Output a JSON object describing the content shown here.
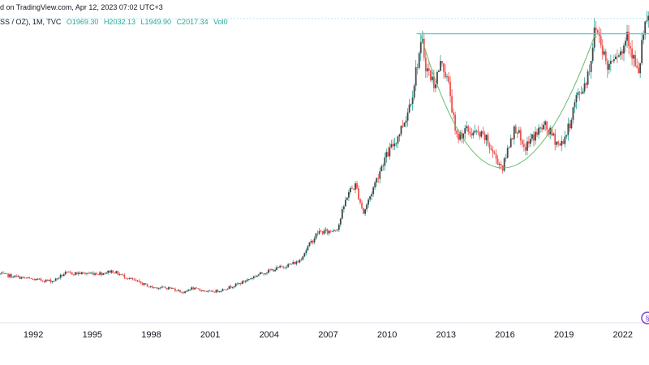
{
  "header": {
    "published": "d on TradingView.com, Apr 12, 2023 07:02 UTC+3"
  },
  "ohlc": {
    "symbol": "SS / OZ), 1M, TVC",
    "open": "O1969.30",
    "high": "H2032.13",
    "low": "L1949.90",
    "close": "C2017.34",
    "volume": "Vol0"
  },
  "colors": {
    "up": "#26a69a",
    "down": "#ef5350",
    "body": "#444444",
    "cup_curve": "#66bb6a",
    "resistance_line": "#4dd0e1",
    "grid_line": "#b2ebf2",
    "badge": "#7b3fe4"
  },
  "chart_data": {
    "type": "candlestick",
    "interval": "1M",
    "x_axis": {
      "type": "time",
      "range": [
        1990.3,
        2023.33
      ],
      "ticks": [
        "1992",
        "1995",
        "1998",
        "2001",
        "2004",
        "2007",
        "2010",
        "2013",
        "2016",
        "2019",
        "2022"
      ],
      "tick_values": [
        1992,
        1995,
        1998,
        2001,
        2004,
        2007,
        2010,
        2013,
        2016,
        2019,
        2022
      ]
    },
    "y_axis": {
      "range": [
        150,
        2200
      ],
      "visible_labels": false
    },
    "price_path": [
      [
        1990.3,
        380
      ],
      [
        1991.0,
        365
      ],
      [
        1992.0,
        345
      ],
      [
        1993.0,
        335
      ],
      [
        1993.6,
        385
      ],
      [
        1994.5,
        385
      ],
      [
        1995.5,
        385
      ],
      [
        1996.0,
        400
      ],
      [
        1997.0,
        345
      ],
      [
        1998.0,
        295
      ],
      [
        1999.0,
        290
      ],
      [
        1999.7,
        260
      ],
      [
        2000.0,
        290
      ],
      [
        2001.0,
        265
      ],
      [
        2001.5,
        275
      ],
      [
        2002.5,
        320
      ],
      [
        2003.5,
        380
      ],
      [
        2004.5,
        420
      ],
      [
        2005.5,
        460
      ],
      [
        2006.0,
        560
      ],
      [
        2006.5,
        650
      ],
      [
        2007.0,
        650
      ],
      [
        2007.5,
        680
      ],
      [
        2008.0,
        900
      ],
      [
        2008.4,
        950
      ],
      [
        2008.8,
        770
      ],
      [
        2009.2,
        900
      ],
      [
        2009.8,
        1100
      ],
      [
        2010.5,
        1250
      ],
      [
        2011.0,
        1400
      ],
      [
        2011.3,
        1550
      ],
      [
        2011.6,
        1780
      ],
      [
        2011.8,
        1850
      ],
      [
        2012.0,
        1700
      ],
      [
        2012.4,
        1600
      ],
      [
        2012.8,
        1750
      ],
      [
        2013.2,
        1550
      ],
      [
        2013.5,
        1250
      ],
      [
        2014.0,
        1300
      ],
      [
        2014.5,
        1280
      ],
      [
        2015.0,
        1250
      ],
      [
        2015.5,
        1130
      ],
      [
        2015.9,
        1060
      ],
      [
        2016.3,
        1260
      ],
      [
        2016.6,
        1330
      ],
      [
        2016.9,
        1170
      ],
      [
        2017.5,
        1270
      ],
      [
        2018.0,
        1330
      ],
      [
        2018.5,
        1250
      ],
      [
        2018.8,
        1200
      ],
      [
        2019.2,
        1300
      ],
      [
        2019.6,
        1500
      ],
      [
        2020.0,
        1580
      ],
      [
        2020.3,
        1700
      ],
      [
        2020.6,
        1970
      ],
      [
        2020.9,
        1870
      ],
      [
        2021.2,
        1700
      ],
      [
        2021.6,
        1810
      ],
      [
        2022.0,
        1800
      ],
      [
        2022.2,
        1950
      ],
      [
        2022.5,
        1780
      ],
      [
        2022.8,
        1640
      ],
      [
        2023.0,
        1900
      ],
      [
        2023.33,
        2017
      ]
    ],
    "annotations": [
      {
        "type": "curve",
        "name": "cup",
        "points": [
          [
            2011.7,
            1920
          ],
          [
            2015.9,
            1060
          ],
          [
            2020.6,
            1920
          ]
        ]
      },
      {
        "type": "horizontal_segment",
        "name": "resistance",
        "x": [
          2011.5,
          2023.33
        ],
        "y": 1920
      },
      {
        "type": "horizontal_line",
        "name": "price-line",
        "y": 2017
      }
    ]
  }
}
